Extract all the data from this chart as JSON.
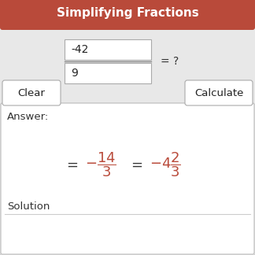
{
  "title": "Simplifying Fractions",
  "title_bg_color": "#b94a3a",
  "title_text_color": "#ffffff",
  "outer_bg_color": "#e8e8e8",
  "inner_bg_color": "#ffffff",
  "border_color": "#bbbbbb",
  "numerator": "-42",
  "denominator": "9",
  "equals_question": "= ?",
  "clear_btn_text": "Clear",
  "calculate_btn_text": "Calculate",
  "answer_label": "Answer:",
  "solution_label": "Solution",
  "answer_color": "#b94a3a",
  "text_color": "#333333",
  "fig_width": 3.24,
  "fig_height": 3.24,
  "dpi": 100
}
